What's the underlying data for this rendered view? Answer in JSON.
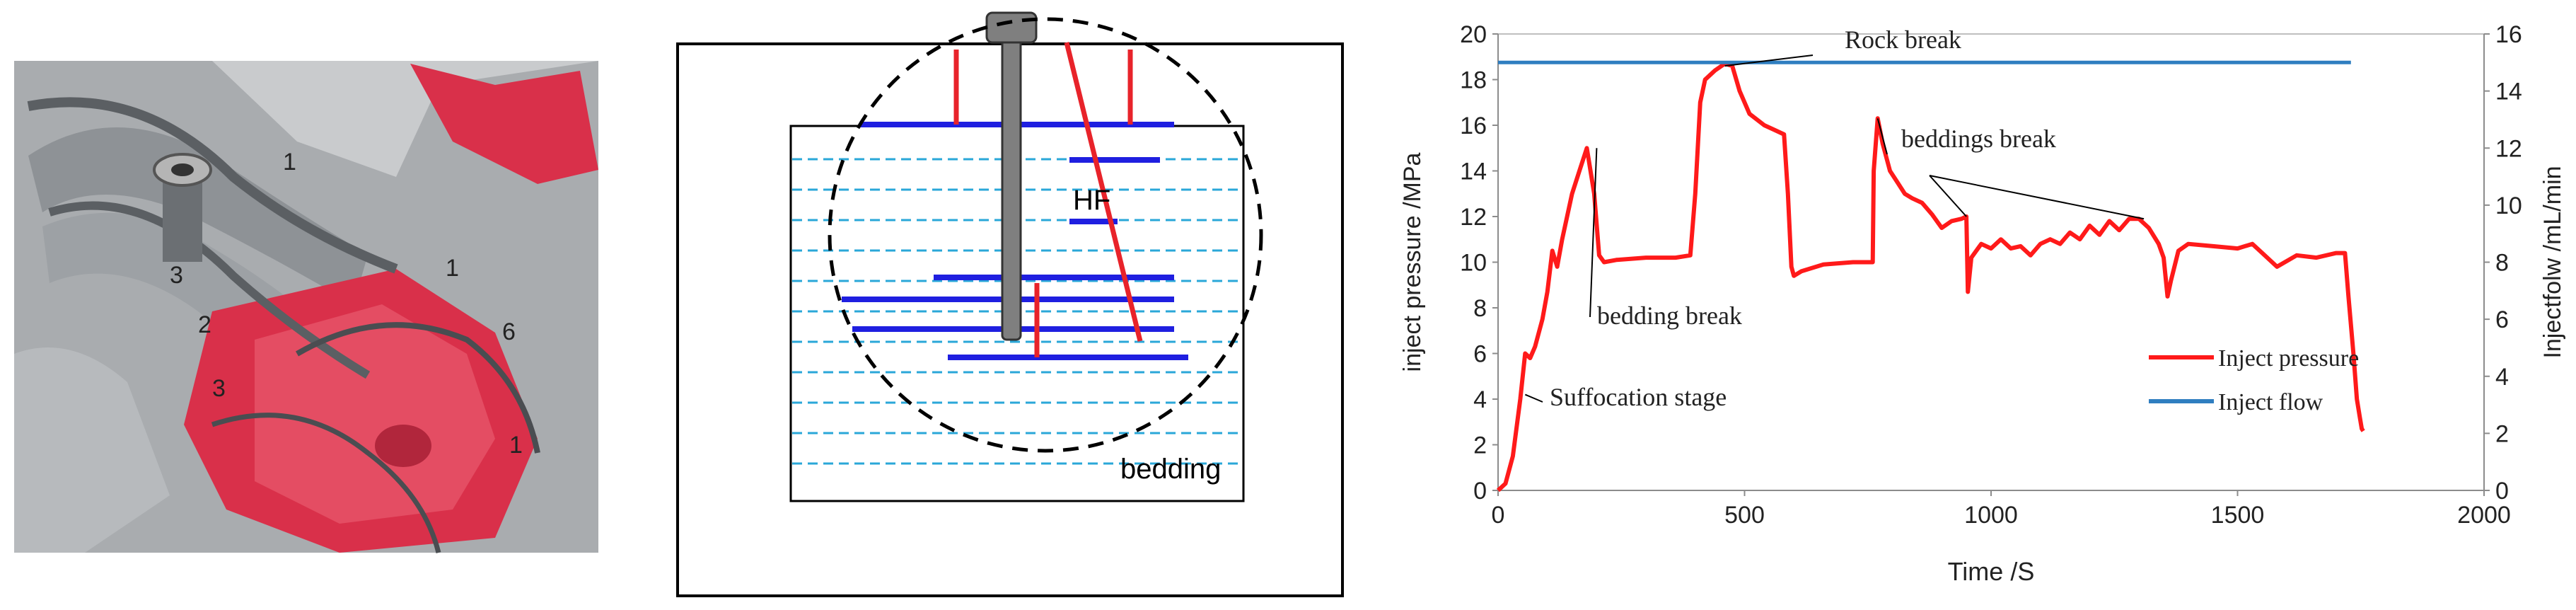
{
  "photo": {
    "numbers": [
      "3",
      "2",
      "3",
      "1",
      "1",
      "6",
      "1"
    ]
  },
  "diagram": {
    "hf_label": "HF",
    "bedding_label": "bedding",
    "colors": {
      "frac_blue": "#1f1fe0",
      "frac_red": "#e8232a",
      "bedding_dash": "#2aa7d8",
      "rod": "#7f7f7f"
    }
  },
  "chart_data": {
    "type": "line",
    "xlabel": "Time /S",
    "ylabel": "inject pressure /MPa",
    "y2label": "Injectfolw /mL/min",
    "xlim": [
      0,
      2000
    ],
    "ylim": [
      0,
      20
    ],
    "y2lim": [
      0,
      16
    ],
    "xticks": [
      "0",
      "500",
      "1000",
      "1500",
      "2000"
    ],
    "yticks": [
      "0",
      "2",
      "4",
      "6",
      "8",
      "10",
      "12",
      "14",
      "16",
      "18",
      "20"
    ],
    "y2ticks": [
      "0",
      "2",
      "4",
      "6",
      "8",
      "10",
      "12",
      "14",
      "16"
    ],
    "grid": false,
    "legend_position": "bottom-right",
    "series": [
      {
        "name": "Inject pressure",
        "axis": "left",
        "color": "#ff1a1a",
        "x": [
          0,
          15,
          30,
          45,
          55,
          65,
          75,
          90,
          100,
          110,
          120,
          130,
          140,
          150,
          165,
          180,
          195,
          205,
          215,
          240,
          300,
          360,
          390,
          400,
          410,
          420,
          440,
          460,
          475,
          490,
          510,
          540,
          560,
          580,
          588,
          595,
          600,
          615,
          660,
          720,
          760,
          762,
          770,
          780,
          795,
          810,
          825,
          840,
          860,
          880,
          900,
          920,
          940,
          950,
          953,
          960,
          980,
          1000,
          1020,
          1040,
          1060,
          1080,
          1100,
          1120,
          1140,
          1160,
          1180,
          1200,
          1220,
          1240,
          1260,
          1280,
          1300,
          1320,
          1340,
          1350,
          1358,
          1365,
          1380,
          1400,
          1450,
          1500,
          1530,
          1550,
          1580,
          1620,
          1660,
          1700,
          1718,
          1725,
          1735,
          1742,
          1748,
          1752,
          1755
        ],
        "y": [
          0,
          0.3,
          1.5,
          4.0,
          6.0,
          5.8,
          6.3,
          7.5,
          8.7,
          10.5,
          9.8,
          11.0,
          12.0,
          13.0,
          14.0,
          15.0,
          13.0,
          10.3,
          10.0,
          10.1,
          10.2,
          10.2,
          10.3,
          13.0,
          17.0,
          18.0,
          18.4,
          18.7,
          18.6,
          17.5,
          16.5,
          16.0,
          15.8,
          15.6,
          13.0,
          9.8,
          9.4,
          9.6,
          9.9,
          10.0,
          10.0,
          14.0,
          16.3,
          15.2,
          14.0,
          13.5,
          13.0,
          12.8,
          12.6,
          12.1,
          11.5,
          11.8,
          11.9,
          12.0,
          8.7,
          10.2,
          10.8,
          10.6,
          11.0,
          10.6,
          10.7,
          10.3,
          10.8,
          11.0,
          10.8,
          11.3,
          11.0,
          11.6,
          11.2,
          11.8,
          11.4,
          11.9,
          11.9,
          11.5,
          10.8,
          10.2,
          8.5,
          9.2,
          10.5,
          10.8,
          10.7,
          10.6,
          10.8,
          10.4,
          9.8,
          10.3,
          10.2,
          10.4,
          10.4,
          8.5,
          6.0,
          4.0,
          3.2,
          2.7,
          2.6
        ]
      },
      {
        "name": "Inject flow",
        "axis": "right",
        "color": "#2f7ec0",
        "x": [
          0,
          1730
        ],
        "y": [
          15,
          15
        ]
      }
    ],
    "annotations": [
      {
        "text": "Rock break",
        "point": [
          460,
          18.6
        ]
      },
      {
        "text": "beddings break",
        "point": [
          770,
          16.3
        ]
      },
      {
        "text": "bedding break",
        "point": [
          200,
          15.0
        ]
      },
      {
        "text": "Suffocation stage",
        "point": [
          55,
          4.2
        ]
      }
    ]
  }
}
